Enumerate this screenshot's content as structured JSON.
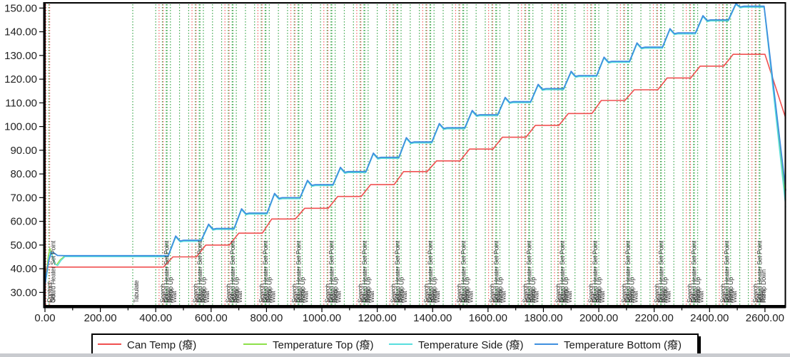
{
  "legend": {
    "entries": [
      {
        "label": "Can Temp (癈)",
        "color": "#f05050"
      },
      {
        "label": "Temperature Top (癈)",
        "color": "#8de04a"
      },
      {
        "label": "Temperature Side (癈)",
        "color": "#58dede"
      },
      {
        "label": "Temperature Bottom (癈)",
        "color": "#3f8fdf"
      }
    ]
  },
  "chart_data": {
    "type": "line",
    "title": "",
    "xlabel": "",
    "ylabel": "",
    "x_range": [
      0,
      2675
    ],
    "y_range": [
      23.8,
      152.2
    ],
    "x_ticks": {
      "start": 0,
      "end": 2600,
      "major": 200,
      "minor": 100,
      "decimals": 2
    },
    "y_ticks": {
      "start": 30,
      "end": 150,
      "major": 10,
      "decimals": 2
    },
    "grid": "none",
    "legend_position": "bottom",
    "steps": {
      "first_cluster_t": 400,
      "cluster_interval": 119,
      "cluster_count": 18
    },
    "series": [
      {
        "name": "Can Temp (癈)",
        "color": "#f05050",
        "width": 1.6,
        "start_points": [
          [
            0,
            33
          ],
          [
            3,
            39.5
          ],
          [
            8,
            40.7
          ]
        ],
        "plateaus": [
          40.7,
          45,
          50,
          55,
          61,
          65.5,
          70.5,
          75.5,
          81,
          85.5,
          90.5,
          95.5,
          100.5,
          105.5,
          111,
          115.5,
          120.5,
          125.5,
          130.5
        ],
        "ramp": {
          "start_dt": 28,
          "duration": 34
        },
        "end_points": [
          [
            2600,
            130.5
          ],
          [
            2675,
            103.5
          ]
        ]
      },
      {
        "name": "Temperature Top (癈)",
        "color": "#8de04a",
        "width": 1.4,
        "start_points": [
          [
            0,
            33
          ],
          [
            5,
            38
          ],
          [
            12,
            45.5
          ],
          [
            18,
            48.6
          ],
          [
            26,
            46
          ],
          [
            34,
            42.3
          ],
          [
            42,
            41.6
          ],
          [
            55,
            43.8
          ],
          [
            70,
            45.25
          ],
          [
            100,
            45.25
          ]
        ],
        "follow": {
          "series": 3,
          "offset": -0.25,
          "from_t": 100,
          "to_t": 2597
        },
        "end_points": [
          [
            2597,
            150.55
          ],
          [
            2675,
            69
          ]
        ]
      },
      {
        "name": "Temperature Side (癈)",
        "color": "#58dede",
        "width": 1.4,
        "start_points": [
          [
            0,
            33
          ],
          [
            6,
            37
          ],
          [
            14,
            44
          ],
          [
            20,
            47.2
          ],
          [
            28,
            45.2
          ],
          [
            36,
            41.9
          ],
          [
            46,
            41.3
          ],
          [
            58,
            43.5
          ],
          [
            72,
            45.1
          ],
          [
            100,
            45.1
          ]
        ],
        "follow": {
          "series": 3,
          "offset": -0.45,
          "from_t": 100,
          "to_t": 2597
        },
        "end_points": [
          [
            2597,
            150.35
          ],
          [
            2675,
            66
          ]
        ]
      },
      {
        "name": "Temperature Bottom (癈)",
        "color": "#3f8fdf",
        "width": 1.8,
        "start_points": [
          [
            0,
            33
          ],
          [
            6,
            38
          ],
          [
            14,
            43.5
          ],
          [
            22,
            46.4
          ],
          [
            30,
            46.9
          ],
          [
            45,
            45.6
          ],
          [
            70,
            45.5
          ],
          [
            445,
            45.5
          ]
        ],
        "plateaus": [
          45.5,
          52,
          57,
          63.5,
          70,
          75.5,
          81,
          87,
          93.5,
          99.5,
          105,
          110.5,
          116,
          121.5,
          127.5,
          133.5,
          139.5,
          145,
          150.8
        ],
        "step_shape": {
          "hold_dt": 45,
          "rise_dt": 27,
          "overshoot": 1.8,
          "dip_dt": 16,
          "dip": -0.3,
          "settle_dt": 12,
          "max_v": 151.9
        },
        "end_points": [
          [
            2597,
            150.8
          ],
          [
            2675,
            73
          ]
        ]
      }
    ],
    "events": {
      "colors": {
        "red": "#f26060",
        "green": "#3aa64a"
      },
      "label_color": "#3c3c3c",
      "singles": [
        {
          "t": 4,
          "color": "red",
          "label": "Contact"
        },
        {
          "t": 14,
          "color": "green",
          "label": "Set"
        },
        {
          "t": 17,
          "color": "red",
          "label": "Guard Heater Set Point"
        },
        {
          "t": 317,
          "color": "green",
          "label": "Tabulate"
        }
      ],
      "cluster_template": [
        {
          "dt": 0,
          "color": "green",
          "label": ""
        },
        {
          "dt": 12,
          "color": "red",
          "label": "Search"
        },
        {
          "dt": 24,
          "color": "green",
          "label": "Set"
        },
        {
          "dt": 27,
          "color": "red",
          "label": "Guard Heater Set Point"
        },
        {
          "dt": 38,
          "color": "green",
          "label": "Beep"
        },
        {
          "dt": 41,
          "color": "green",
          "label": "Ramp Up"
        },
        {
          "dt": 53,
          "color": "green",
          "label": "Wait"
        },
        {
          "dt": 86,
          "color": "green",
          "label": ""
        }
      ],
      "final_cluster": [
        {
          "t": 2540,
          "color": "green",
          "label": ""
        },
        {
          "t": 2553,
          "color": "red",
          "label": "Search"
        },
        {
          "t": 2565,
          "color": "green",
          "label": "Set"
        },
        {
          "t": 2568,
          "color": "red",
          "label": "Guard Heater Set Point"
        },
        {
          "t": 2579,
          "color": "green",
          "label": "Beep"
        },
        {
          "t": 2582,
          "color": "green",
          "label": "Ramp Down"
        }
      ]
    }
  }
}
